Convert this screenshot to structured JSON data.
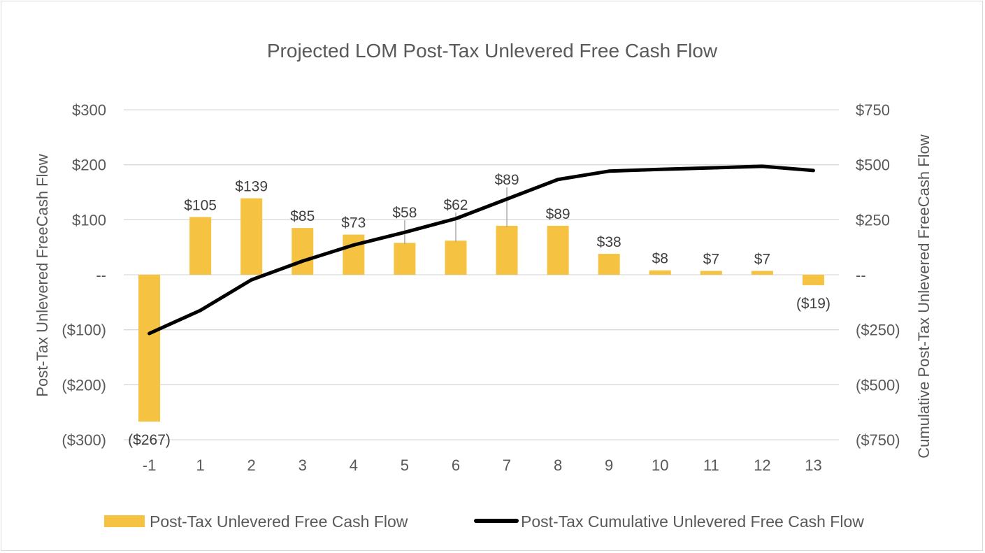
{
  "chart_data": {
    "type": "bar",
    "title": "Projected LOM Post-Tax Unlevered Free Cash Flow",
    "categories": [
      "-1",
      "1",
      "2",
      "3",
      "4",
      "5",
      "6",
      "7",
      "8",
      "9",
      "10",
      "11",
      "12",
      "13"
    ],
    "series": [
      {
        "name": "Post-Tax Unlevered Free Cash Flow",
        "type": "bar",
        "axis": "left",
        "color": "#F5C242",
        "values": [
          -267,
          105,
          139,
          85,
          73,
          58,
          62,
          89,
          89,
          38,
          8,
          7,
          7,
          -19
        ],
        "labels": [
          "($267)",
          "$105",
          "$139",
          "$85",
          "$73",
          "$58",
          "$62",
          "$89",
          "$89",
          "$38",
          "$8",
          "$7",
          "$7",
          "($19)"
        ]
      },
      {
        "name": "Post-Tax Cumulative Unlevered Free Cash Flow",
        "type": "line",
        "axis": "right",
        "color": "#000000",
        "values": [
          -267,
          -162,
          -23,
          62,
          135,
          193,
          255,
          344,
          433,
          471,
          479,
          486,
          493,
          474
        ]
      }
    ],
    "ylabel": "Post-Tax Unlevered FreeCash Flow",
    "y2label": "Cumulative Post-Tax Unlevered FreeCash Flow",
    "ylim": [
      -300,
      300
    ],
    "y2lim": [
      -750,
      750
    ],
    "yticks": [
      {
        "value": 300,
        "label": "$300"
      },
      {
        "value": 200,
        "label": "$200"
      },
      {
        "value": 100,
        "label": "$100"
      },
      {
        "value": 0,
        "label": "--"
      },
      {
        "value": -100,
        "label": "($100)"
      },
      {
        "value": -200,
        "label": "($200)"
      },
      {
        "value": -300,
        "label": "($300)"
      }
    ],
    "y2ticks": [
      {
        "value": 750,
        "label": "$750"
      },
      {
        "value": 500,
        "label": "$500"
      },
      {
        "value": 250,
        "label": "$250"
      },
      {
        "value": 0,
        "label": "--"
      },
      {
        "value": -250,
        "label": "($250)"
      },
      {
        "value": -500,
        "label": "($500)"
      },
      {
        "value": -750,
        "label": "($750)"
      }
    ],
    "grid": true,
    "legend_position": "bottom"
  }
}
